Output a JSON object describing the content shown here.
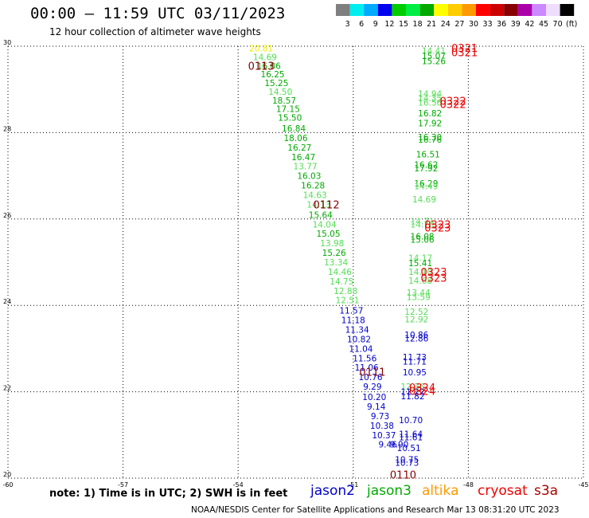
{
  "header": {
    "title": "00:00 — 11:59 UTC 03/11/2023",
    "subtitle": "12 hour collection of altimeter wave heights"
  },
  "colorbar": {
    "labels": [
      "3",
      "6",
      "9",
      "12",
      "15",
      "18",
      "21",
      "24",
      "27",
      "30",
      "33",
      "36",
      "39",
      "42",
      "45",
      "70",
      "(ft)"
    ],
    "colors": [
      "#7f7f7f",
      "#00eeee",
      "#00aaff",
      "#0000ee",
      "#00cc00",
      "#00ee44",
      "#00aa00",
      "#ffff00",
      "#ffcc00",
      "#ff9900",
      "#ff0000",
      "#cc0000",
      "#880000",
      "#aa00aa",
      "#cc88ff",
      "#eeddff",
      "#000000"
    ]
  },
  "footer": {
    "note": "note: 1) Time is in UTC; 2) SWH is in feet",
    "credit": "NOAA/NESDIS Center for Satellite Applications and Research    Mar 13 08:31:20 UTC 2023",
    "satellites": [
      {
        "name": "jason2",
        "color": "#0000cc"
      },
      {
        "name": "jason3",
        "color": "#00aa00"
      },
      {
        "name": "altika",
        "color": "#ff9900"
      },
      {
        "name": "cryosat",
        "color": "#ee0000"
      },
      {
        "name": "s3a",
        "color": "#aa0000"
      }
    ]
  },
  "chart_data": {
    "type": "scatter",
    "xlim": [
      -60,
      -45
    ],
    "ylim": [
      20,
      30
    ],
    "x_ticks": [
      "-60",
      "-57",
      "-54",
      "-51",
      "-48",
      "-45"
    ],
    "y_ticks": [
      "20",
      "22",
      "24",
      "26",
      "28",
      "30"
    ],
    "grid": true,
    "track_west": [
      {
        "lon": -53.4,
        "lat": 29.95,
        "v": "20.81",
        "c": "#eeee00"
      },
      {
        "lon": -53.3,
        "lat": 29.75,
        "v": "14.69",
        "c": "#55dd55"
      },
      {
        "lon": -53.2,
        "lat": 29.55,
        "v": "16.86",
        "c": "#00aa00"
      },
      {
        "lon": -53.1,
        "lat": 29.35,
        "v": "16.25",
        "c": "#00aa00"
      },
      {
        "lon": -53.0,
        "lat": 29.15,
        "v": "15.25",
        "c": "#00aa00"
      },
      {
        "lon": -52.9,
        "lat": 28.95,
        "v": "14.50",
        "c": "#55dd55"
      },
      {
        "lon": -52.8,
        "lat": 28.75,
        "v": "18.57",
        "c": "#00aa00"
      },
      {
        "lon": -52.7,
        "lat": 28.55,
        "v": "17.15",
        "c": "#00aa00"
      },
      {
        "lon": -52.65,
        "lat": 28.35,
        "v": "15.50",
        "c": "#00aa00"
      },
      {
        "lon": -52.55,
        "lat": 28.1,
        "v": "16.84",
        "c": "#00aa00"
      },
      {
        "lon": -52.5,
        "lat": 27.88,
        "v": "18.06",
        "c": "#00aa00"
      },
      {
        "lon": -52.4,
        "lat": 27.66,
        "v": "16.27",
        "c": "#00aa00"
      },
      {
        "lon": -52.3,
        "lat": 27.44,
        "v": "16.47",
        "c": "#00aa00"
      },
      {
        "lon": -52.25,
        "lat": 27.22,
        "v": "13.77",
        "c": "#55dd55"
      },
      {
        "lon": -52.15,
        "lat": 27.0,
        "v": "16.03",
        "c": "#00aa00"
      },
      {
        "lon": -52.05,
        "lat": 26.78,
        "v": "16.28",
        "c": "#00aa00"
      },
      {
        "lon": -52.0,
        "lat": 26.56,
        "v": "14.63",
        "c": "#55dd55"
      },
      {
        "lon": -51.9,
        "lat": 26.34,
        "v": "14.13",
        "c": "#55dd55"
      },
      {
        "lon": -51.85,
        "lat": 26.1,
        "v": "15.64",
        "c": "#00aa00"
      },
      {
        "lon": -51.75,
        "lat": 25.88,
        "v": "14.04",
        "c": "#55dd55"
      },
      {
        "lon": -51.65,
        "lat": 25.66,
        "v": "15.05",
        "c": "#00aa00"
      },
      {
        "lon": -51.55,
        "lat": 25.44,
        "v": "13.98",
        "c": "#55dd55"
      },
      {
        "lon": -51.5,
        "lat": 25.22,
        "v": "15.26",
        "c": "#00aa00"
      },
      {
        "lon": -51.45,
        "lat": 25.0,
        "v": "13.34",
        "c": "#55dd55"
      },
      {
        "lon": -51.35,
        "lat": 24.78,
        "v": "14.46",
        "c": "#55dd55"
      },
      {
        "lon": -51.3,
        "lat": 24.56,
        "v": "14.75",
        "c": "#55dd55"
      },
      {
        "lon": -51.2,
        "lat": 24.34,
        "v": "12.88",
        "c": "#55dd55"
      },
      {
        "lon": -51.15,
        "lat": 24.12,
        "v": "12.51",
        "c": "#55dd55"
      },
      {
        "lon": -51.05,
        "lat": 23.88,
        "v": "11.57",
        "c": "#0000cc"
      },
      {
        "lon": -51.0,
        "lat": 23.66,
        "v": "11.18",
        "c": "#0000cc"
      },
      {
        "lon": -50.9,
        "lat": 23.44,
        "v": "11.34",
        "c": "#0000cc"
      },
      {
        "lon": -50.85,
        "lat": 23.22,
        "v": "10.82",
        "c": "#0000cc"
      },
      {
        "lon": -50.8,
        "lat": 23.0,
        "v": "11.04",
        "c": "#0000cc"
      },
      {
        "lon": -50.7,
        "lat": 22.78,
        "v": "11.56",
        "c": "#0000cc"
      },
      {
        "lon": -50.65,
        "lat": 22.56,
        "v": "11.06",
        "c": "#0000cc"
      },
      {
        "lon": -50.55,
        "lat": 22.34,
        "v": "10.76",
        "c": "#0000cc"
      },
      {
        "lon": -50.5,
        "lat": 22.12,
        "v": "9.29",
        "c": "#0000cc"
      },
      {
        "lon": -50.45,
        "lat": 21.88,
        "v": "10.20",
        "c": "#0000cc"
      },
      {
        "lon": -50.4,
        "lat": 21.66,
        "v": "9.14",
        "c": "#0000cc"
      },
      {
        "lon": -50.3,
        "lat": 21.44,
        "v": "9.73",
        "c": "#0000cc"
      },
      {
        "lon": -50.25,
        "lat": 21.22,
        "v": "10.38",
        "c": "#0000cc"
      },
      {
        "lon": -50.2,
        "lat": 21.0,
        "v": "10.37",
        "c": "#0000cc"
      },
      {
        "lon": -50.1,
        "lat": 20.78,
        "v": "9.46",
        "c": "#0000cc"
      },
      {
        "lon": -49.8,
        "lat": 20.78,
        "v": "9.90",
        "c": "#0000cc"
      }
    ],
    "track_east": [
      {
        "lon": -48.9,
        "lat": 29.9,
        "v": "14.41",
        "c": "#55dd55"
      },
      {
        "lon": -48.9,
        "lat": 29.78,
        "v": "15.07",
        "c": "#00aa00"
      },
      {
        "lon": -48.9,
        "lat": 29.66,
        "v": "15.26",
        "c": "#00aa00"
      },
      {
        "lon": -49.0,
        "lat": 28.9,
        "v": "14.94",
        "c": "#55dd55"
      },
      {
        "lon": -49.0,
        "lat": 28.8,
        "v": "14.35",
        "c": "#55dd55"
      },
      {
        "lon": -49.0,
        "lat": 28.7,
        "v": "16.56",
        "c": "#55dd55"
      },
      {
        "lon": -49.0,
        "lat": 28.45,
        "v": "16.82",
        "c": "#00aa00"
      },
      {
        "lon": -49.0,
        "lat": 28.22,
        "v": "17.92",
        "c": "#00aa00"
      },
      {
        "lon": -49.0,
        "lat": 27.9,
        "v": "16.30",
        "c": "#00aa00"
      },
      {
        "lon": -49.0,
        "lat": 27.84,
        "v": "16.76",
        "c": "#00aa00"
      },
      {
        "lon": -49.05,
        "lat": 27.5,
        "v": "16.51",
        "c": "#00aa00"
      },
      {
        "lon": -49.1,
        "lat": 27.26,
        "v": "16.62",
        "c": "#00aa00"
      },
      {
        "lon": -49.1,
        "lat": 27.18,
        "v": "17.92",
        "c": "#00aa00"
      },
      {
        "lon": -49.1,
        "lat": 26.83,
        "v": "16.29",
        "c": "#00aa00"
      },
      {
        "lon": -49.1,
        "lat": 26.76,
        "v": "14.49",
        "c": "#55dd55"
      },
      {
        "lon": -49.15,
        "lat": 26.46,
        "v": "14.69",
        "c": "#55dd55"
      },
      {
        "lon": -49.2,
        "lat": 25.95,
        "v": "14.71",
        "c": "#55dd55"
      },
      {
        "lon": -49.2,
        "lat": 25.88,
        "v": "14.70",
        "c": "#55dd55"
      },
      {
        "lon": -49.2,
        "lat": 25.6,
        "v": "16.08",
        "c": "#00aa00"
      },
      {
        "lon": -49.2,
        "lat": 25.53,
        "v": "15.06",
        "c": "#00aa00"
      },
      {
        "lon": -49.25,
        "lat": 25.1,
        "v": "14.17",
        "c": "#55dd55"
      },
      {
        "lon": -49.25,
        "lat": 24.98,
        "v": "15.41",
        "c": "#00aa00"
      },
      {
        "lon": -49.25,
        "lat": 24.78,
        "v": "14.10",
        "c": "#55dd55"
      },
      {
        "lon": -49.25,
        "lat": 24.58,
        "v": "14.68",
        "c": "#55dd55"
      },
      {
        "lon": -49.3,
        "lat": 24.3,
        "v": "13.44",
        "c": "#55dd55"
      },
      {
        "lon": -49.3,
        "lat": 24.2,
        "v": "13.59",
        "c": "#55dd55"
      },
      {
        "lon": -49.35,
        "lat": 23.86,
        "v": "12.52",
        "c": "#55dd55"
      },
      {
        "lon": -49.35,
        "lat": 23.68,
        "v": "12.92",
        "c": "#55dd55"
      },
      {
        "lon": -49.35,
        "lat": 23.32,
        "v": "10.86",
        "c": "#0000cc"
      },
      {
        "lon": -49.35,
        "lat": 23.24,
        "v": "12.86",
        "c": "#0000cc"
      },
      {
        "lon": -49.4,
        "lat": 22.8,
        "v": "11.73",
        "c": "#0000cc"
      },
      {
        "lon": -49.4,
        "lat": 22.7,
        "v": "11.71",
        "c": "#0000cc"
      },
      {
        "lon": -49.4,
        "lat": 22.45,
        "v": "10.95",
        "c": "#0000cc"
      },
      {
        "lon": -49.45,
        "lat": 22.12,
        "v": "12.36",
        "c": "#55dd55"
      },
      {
        "lon": -49.45,
        "lat": 22.0,
        "v": "11.22",
        "c": "#0000cc"
      },
      {
        "lon": -49.45,
        "lat": 21.9,
        "v": "11.82",
        "c": "#0000cc"
      },
      {
        "lon": -49.5,
        "lat": 21.35,
        "v": "10.70",
        "c": "#0000cc"
      },
      {
        "lon": -49.5,
        "lat": 21.02,
        "v": "11.64",
        "c": "#0000cc"
      },
      {
        "lon": -49.5,
        "lat": 20.95,
        "v": "11.61",
        "c": "#0000cc"
      },
      {
        "lon": -49.55,
        "lat": 20.7,
        "v": "10.51",
        "c": "#0000cc"
      },
      {
        "lon": -49.6,
        "lat": 20.43,
        "v": "10.75",
        "c": "#0000cc"
      },
      {
        "lon": -49.6,
        "lat": 20.36,
        "v": "10.73",
        "c": "#0000cc"
      }
    ],
    "time_labels": [
      {
        "lon": -53.4,
        "lat": 29.55,
        "text": "0113",
        "c": "#880000"
      },
      {
        "lon": -51.7,
        "lat": 26.34,
        "text": "0112",
        "c": "#880000"
      },
      {
        "lon": -50.5,
        "lat": 22.46,
        "text": "0111",
        "c": "#880000"
      },
      {
        "lon": -49.7,
        "lat": 20.08,
        "text": "0110",
        "c": "#880000"
      },
      {
        "lon": -48.1,
        "lat": 29.96,
        "text": "0321",
        "c": "#ee0000"
      },
      {
        "lon": -48.1,
        "lat": 29.86,
        "text": "0321",
        "c": "#ee0000"
      },
      {
        "lon": -48.4,
        "lat": 28.74,
        "text": "0322",
        "c": "#ee0000"
      },
      {
        "lon": -48.4,
        "lat": 28.66,
        "text": "0322",
        "c": "#ee0000"
      },
      {
        "lon": -48.8,
        "lat": 25.88,
        "text": "0323",
        "c": "#ee0000"
      },
      {
        "lon": -48.8,
        "lat": 25.8,
        "text": "0323",
        "c": "#ee0000"
      },
      {
        "lon": -48.9,
        "lat": 24.78,
        "text": "0323",
        "c": "#ee0000"
      },
      {
        "lon": -48.9,
        "lat": 24.64,
        "text": "0323",
        "c": "#ee0000"
      },
      {
        "lon": -49.2,
        "lat": 22.1,
        "text": "0324",
        "c": "#ee0000"
      },
      {
        "lon": -49.2,
        "lat": 22.02,
        "text": "0324",
        "c": "#ee0000"
      }
    ]
  }
}
